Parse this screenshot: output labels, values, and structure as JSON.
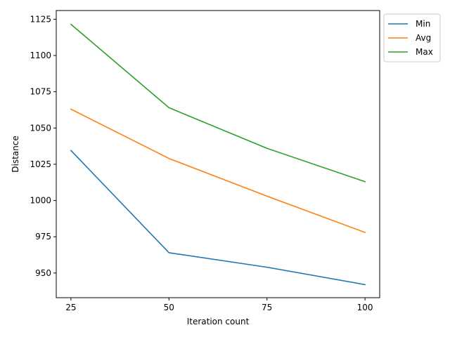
{
  "chart_data": {
    "type": "line",
    "title": "",
    "xlabel": "Iteration count",
    "ylabel": "Distance",
    "x": [
      25,
      50,
      75,
      100
    ],
    "xticks": [
      "25",
      "50",
      "75",
      "100"
    ],
    "yticks": [
      "950",
      "975",
      "1000",
      "1025",
      "1050",
      "1075",
      "1100",
      "1125"
    ],
    "xlim": [
      21.25,
      103.75
    ],
    "ylim": [
      933.0,
      1131.0
    ],
    "grid": false,
    "legend_position": "outside top-right",
    "series": [
      {
        "name": "Min",
        "color": "#1f77b4",
        "values": [
          1034.5,
          964.0,
          954.0,
          942.0
        ]
      },
      {
        "name": "Avg",
        "color": "#ff7f0e",
        "values": [
          1063.0,
          1029.0,
          1003.0,
          978.0
        ]
      },
      {
        "name": "Max",
        "color": "#2ca02c",
        "values": [
          1121.5,
          1064.0,
          1036.0,
          1013.0
        ]
      }
    ]
  }
}
